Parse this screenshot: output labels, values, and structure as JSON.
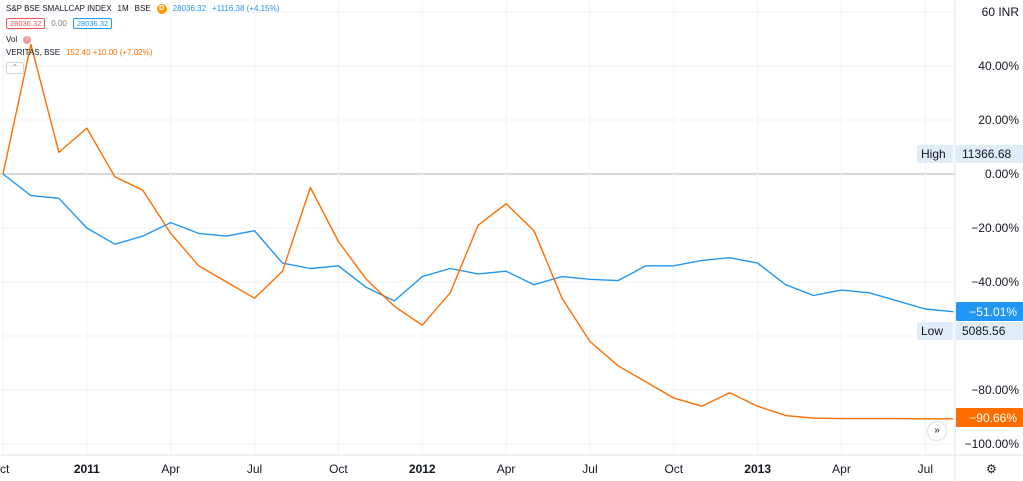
{
  "legend": {
    "symbol": "S&P BSE SMALLCAP INDEX",
    "interval": "1M",
    "exchange": "BSE",
    "flag": "D",
    "last": "28036.32",
    "change": "+1116.38 (+4.15%)",
    "bid": "28036.32",
    "spread": "0.00",
    "ask": "28036.32",
    "vol_label": "Vol",
    "compare_symbol": "VERITAS, BSE",
    "compare_value": "152.40 +10.00 (+7.02%)",
    "collapse": "⌃"
  },
  "colors": {
    "index": "#2196f3",
    "veritas": "#ff6d00",
    "grid": "#f0f3fa",
    "zero_line": "#b2b5be",
    "label_bg": "#e1ecf9"
  },
  "axis_labels": {
    "high_label": "High",
    "high_value": "11366.68",
    "low_label": "Low",
    "low_value": "5085.56",
    "index_last": "−51.01%",
    "veritas_last": "−90.66%"
  },
  "scroll_icon": "»",
  "settings_icon": "⚙",
  "chart_data": {
    "type": "line",
    "x": [
      "2010-10",
      "2010-11",
      "2010-12",
      "2011-01",
      "2011-02",
      "2011-03",
      "2011-04",
      "2011-05",
      "2011-06",
      "2011-07",
      "2011-08",
      "2011-09",
      "2011-10",
      "2011-11",
      "2011-12",
      "2012-01",
      "2012-02",
      "2012-03",
      "2012-04",
      "2012-05",
      "2012-06",
      "2012-07",
      "2012-08",
      "2012-09",
      "2012-10",
      "2012-11",
      "2012-12",
      "2013-01",
      "2013-02",
      "2013-03",
      "2013-04",
      "2013-05",
      "2013-06",
      "2013-07",
      "2013-08"
    ],
    "x_tick_labels": [
      "ct",
      "2011",
      "Apr",
      "Jul",
      "Oct",
      "2012",
      "Apr",
      "Jul",
      "Oct",
      "2013",
      "Apr",
      "Jul"
    ],
    "y_unit": "%",
    "ylim": [
      -100,
      60
    ],
    "y_ticks": [
      "60 INR",
      "40.00%",
      "20.00%",
      "0.00%",
      "−20.00%",
      "−40.00%",
      "−80.00%",
      "−100.00%"
    ],
    "series": [
      {
        "name": "S&P BSE SMALLCAP INDEX",
        "values": [
          0,
          -8,
          -9,
          -20,
          -26,
          -23,
          -18,
          -22,
          -23,
          -21,
          -33,
          -35,
          -34,
          -42,
          -47,
          -38,
          -35,
          -37,
          -36,
          -41,
          -38,
          -39,
          -39.5,
          -34,
          -34,
          -32,
          -31,
          -33,
          -41,
          -45,
          -43,
          -44,
          -47,
          -50,
          -51.01
        ]
      },
      {
        "name": "VERITAS, BSE",
        "values": [
          0,
          48,
          8,
          17,
          -1,
          -6,
          -22,
          -34,
          -40,
          -46,
          -36,
          -5,
          -25,
          -39,
          -49,
          -56,
          -44,
          -19,
          -11,
          -21,
          -46,
          -62,
          -71,
          -77,
          -83,
          -86,
          -81,
          -86,
          -89.5,
          -90.4,
          -90.6,
          -90.6,
          -90.6,
          -90.66,
          -90.66
        ]
      }
    ],
    "grid": true
  }
}
